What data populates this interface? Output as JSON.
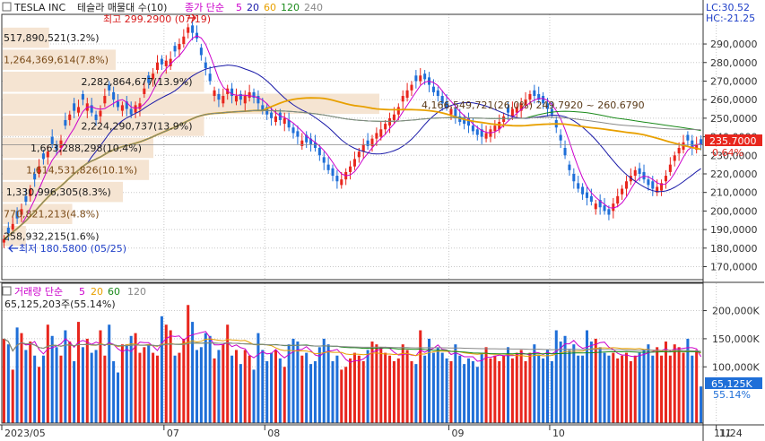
{
  "header": {
    "symbol": "TESLA INC",
    "chart_name": "테슬라 매물대 수(10)",
    "ma_label": "종가 단순",
    "ma_periods": [
      "5",
      "20",
      "60",
      "120",
      "240"
    ],
    "ma_colors": [
      "#cc00cc",
      "#1a1aa8",
      "#e8a000",
      "#1a8a1a",
      "#888888"
    ],
    "lc": "LC:30.52",
    "hc": "HC:-21.25",
    "high_note": "최고 299.2900 (07/19)",
    "low_note": "최저 180.5800 (05/25)",
    "current_price": "235.7000",
    "current_change": "0.64%"
  },
  "volume_header": {
    "label": "거래량 단순",
    "ma_periods": [
      "5",
      "20",
      "60",
      "120"
    ],
    "ma_colors": [
      "#cc00cc",
      "#e8a000",
      "#1a8a1a",
      "#888888"
    ],
    "readout": "65,125,203주(55.14%)",
    "current_volume": "65,125K",
    "current_pct": "55.14%"
  },
  "range_note": "4,166,549,721(26.0%) 249.7920 ~ 260.6790",
  "colors": {
    "up": "#e8261d",
    "down": "#1f6fd8",
    "profile": "#f5e4d2",
    "border": "#333333"
  },
  "x_labels": [
    "2023/05",
    "07",
    "08",
    "09",
    "10",
    "11",
    "11/24"
  ],
  "chart_data": [
    {
      "type": "candlestick",
      "title": "TESLA INC",
      "y_ticks": [
        170,
        180,
        190,
        200,
        210,
        220,
        230,
        240,
        250,
        260,
        270,
        280,
        290
      ],
      "y_tick_labels": [
        "170,0000",
        "180,0000",
        "190,0000",
        "200,0000",
        "210,0000",
        "220,0000",
        "230,0000",
        "240,0000",
        "250,0000",
        "260,0000",
        "270,0000",
        "280,0000",
        "290,0000"
      ],
      "ylim": [
        163,
        305
      ],
      "high": {
        "value": 299.29,
        "date": "07/19"
      },
      "low": {
        "value": 180.58,
        "date": "05/25"
      },
      "last": 235.7,
      "close": [
        185,
        188,
        193,
        196,
        201,
        205,
        212,
        217,
        224,
        228,
        232,
        236,
        233,
        238,
        246,
        252,
        254,
        256,
        260,
        258,
        253,
        249,
        254,
        262,
        265,
        260,
        256,
        257,
        255,
        252,
        257,
        258,
        266,
        269,
        274,
        280,
        279,
        281,
        282,
        286,
        290,
        294,
        299,
        296,
        293,
        284,
        277,
        270,
        265,
        260,
        262,
        266,
        262,
        262,
        260,
        262,
        264,
        261,
        258,
        254,
        252,
        250,
        251,
        249,
        250,
        245,
        242,
        240,
        238,
        237,
        236,
        234,
        230,
        226,
        222,
        219,
        216,
        217,
        221,
        224,
        228,
        232,
        236,
        235,
        239,
        242,
        244,
        247,
        250,
        252,
        256,
        262,
        265,
        268,
        270,
        273,
        271,
        268,
        264,
        262,
        258,
        256,
        255,
        251,
        248,
        247,
        246,
        243,
        241,
        240,
        242,
        244,
        246,
        248,
        251,
        253,
        255,
        256,
        258,
        260,
        263,
        262,
        260,
        258,
        255,
        252,
        245,
        238,
        230,
        222,
        216,
        212,
        209,
        207,
        205,
        204,
        202,
        200,
        198,
        204,
        208,
        212,
        216,
        219,
        222,
        220,
        217,
        214,
        212,
        213,
        215,
        219,
        225,
        230,
        234,
        237,
        238,
        234,
        236,
        235.7
      ],
      "open_offsets": [
        -2,
        3,
        -3,
        4,
        -3,
        3,
        -4,
        3,
        -4,
        3,
        -3,
        4,
        3,
        -4,
        3,
        -3,
        4,
        -3,
        3,
        -4,
        4,
        3,
        -3,
        -4,
        3,
        4,
        3,
        -3,
        4,
        3,
        -4,
        -3,
        -3,
        4,
        -3,
        -4,
        3,
        -3,
        -4,
        3,
        -3,
        -4,
        -3,
        4,
        3,
        4,
        3,
        4,
        -3,
        3,
        -4,
        -3,
        4,
        -3,
        3,
        -4,
        -3,
        3,
        4,
        3,
        4,
        3,
        -3,
        4,
        -3,
        4,
        3,
        3,
        -3,
        4,
        3,
        3,
        4,
        3,
        3,
        4,
        3,
        -3,
        -4,
        -3,
        -4,
        -3,
        -4,
        3,
        -4,
        -3,
        -4,
        -3,
        -4,
        -3,
        -4,
        -3,
        -4,
        -3,
        3,
        -3,
        3,
        4,
        3,
        3,
        4,
        3,
        -3,
        4,
        3,
        3,
        4,
        3,
        3,
        4,
        -3,
        -4,
        -3,
        -4,
        -3,
        3,
        -4,
        -3,
        -4,
        -3,
        -3,
        3,
        3,
        4,
        3,
        3,
        4,
        3,
        4,
        3,
        4,
        3,
        4,
        3,
        3,
        -3,
        4,
        3,
        3,
        -4,
        -4,
        -3,
        -4,
        -3,
        -3,
        3,
        4,
        3,
        4,
        -3,
        -4,
        -3,
        -4,
        -3,
        -3,
        -4,
        3,
        4,
        -3,
        3
      ],
      "moving_averages": [
        "5",
        "20",
        "60",
        "120",
        "240"
      ],
      "volume_profile": [
        {
          "text": "517,890,521(3.2%)",
          "pct": 3.2
        },
        {
          "text": "1,264,369,614(7.8%)",
          "pct": 7.8
        },
        {
          "text": "2,282,864,677(13.9%)",
          "pct": 13.9
        },
        {
          "text": "4,166,549,721(26.0%)",
          "pct": 26.0
        },
        {
          "text": "2,224,290,737(13.9%)",
          "pct": 13.9
        },
        {
          "text": "1,663,288,298(10.4%)",
          "pct": 10.4
        },
        {
          "text": "1,614,531,826(10.1%)",
          "pct": 10.1
        },
        {
          "text": "1,330,996,305(8.3%)",
          "pct": 8.3
        },
        {
          "text": "770,821,213(4.8%)",
          "pct": 4.8
        },
        {
          "text": "258,932,215(1.6%)",
          "pct": 1.6
        }
      ]
    },
    {
      "type": "bar",
      "title": "거래량",
      "y_ticks": [
        100000,
        150000,
        200000
      ],
      "y_tick_labels": [
        "100,000K",
        "150,000K",
        "200,000K"
      ],
      "ylim": [
        0,
        220000
      ],
      "unit": "K",
      "volume": [
        150,
        140,
        95,
        170,
        160,
        130,
        145,
        120,
        100,
        120,
        175,
        155,
        135,
        120,
        165,
        145,
        110,
        180,
        135,
        150,
        125,
        130,
        165,
        120,
        175,
        110,
        90,
        140,
        140,
        155,
        160,
        125,
        135,
        140,
        125,
        120,
        190,
        175,
        165,
        120,
        125,
        150,
        210,
        180,
        130,
        135,
        160,
        155,
        115,
        130,
        140,
        175,
        120,
        130,
        105,
        130,
        120,
        95,
        160,
        130,
        110,
        125,
        130,
        115,
        100,
        140,
        150,
        145,
        120,
        125,
        105,
        110,
        135,
        150,
        140,
        110,
        120,
        95,
        100,
        115,
        125,
        120,
        110,
        130,
        145,
        140,
        135,
        125,
        120,
        110,
        115,
        140,
        130,
        110,
        105,
        165,
        120,
        150,
        125,
        135,
        125,
        115,
        110,
        140,
        120,
        105,
        115,
        110,
        100,
        125,
        135,
        115,
        120,
        110,
        120,
        135,
        115,
        125,
        130,
        110,
        125,
        140,
        120,
        115,
        130,
        110,
        165,
        145,
        155,
        130,
        140,
        120,
        120,
        165,
        145,
        150,
        135,
        125,
        120,
        125,
        115,
        120,
        125,
        110,
        120,
        125,
        130,
        140,
        120,
        135,
        120,
        145,
        120,
        140,
        135,
        125,
        150,
        120,
        130,
        65.125
      ],
      "last": 65125,
      "last_pct": 55.14,
      "moving_averages": [
        "5",
        "20",
        "60",
        "120"
      ]
    }
  ]
}
